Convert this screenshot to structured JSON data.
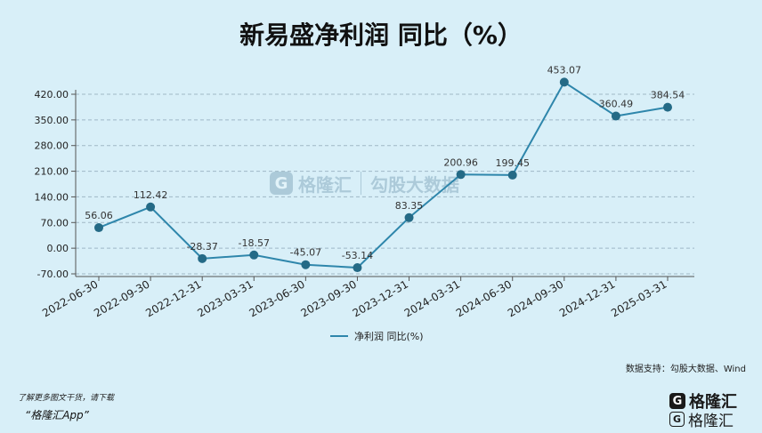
{
  "title": "新易盛净利润 同比（%）",
  "source": "数据支持：勾股大数据、Wind",
  "footer": {
    "note": "了解更多图文干货，请下载",
    "app": "“格隆汇App”"
  },
  "brand": {
    "name": "格隆汇",
    "logo_letter": "G",
    "icon": "gelonghui-logo-icon"
  },
  "watermark": {
    "name": "格隆汇",
    "sub": "勾股大数据",
    "icon": "gelonghui-logo-icon"
  },
  "colors": {
    "line": "#2e86ab",
    "marker": "#246a86",
    "background": "#d8eff8",
    "grid": "#9fb8c6"
  },
  "chart_data": {
    "type": "line",
    "categories": [
      "2022-06-30",
      "2022-09-30",
      "2022-12-31",
      "2023-03-31",
      "2023-06-30",
      "2023-09-30",
      "2023-12-31",
      "2024-03-31",
      "2024-06-30",
      "2024-09-30",
      "2024-12-31",
      "2025-03-31"
    ],
    "series": [
      {
        "name": "净利润 同比(%)",
        "values": [
          56.06,
          112.42,
          -28.37,
          -18.57,
          -45.07,
          -53.14,
          83.35,
          200.96,
          199.45,
          453.07,
          360.49,
          384.54
        ]
      }
    ],
    "yticks": [
      "420.00",
      "350.00",
      "280.00",
      "210.00",
      "140.00",
      "70.00",
      "0.00",
      "-70.00"
    ],
    "ylim": [
      -70,
      420
    ],
    "grid": "horizontal-dashed",
    "legend": "bottom-center"
  }
}
